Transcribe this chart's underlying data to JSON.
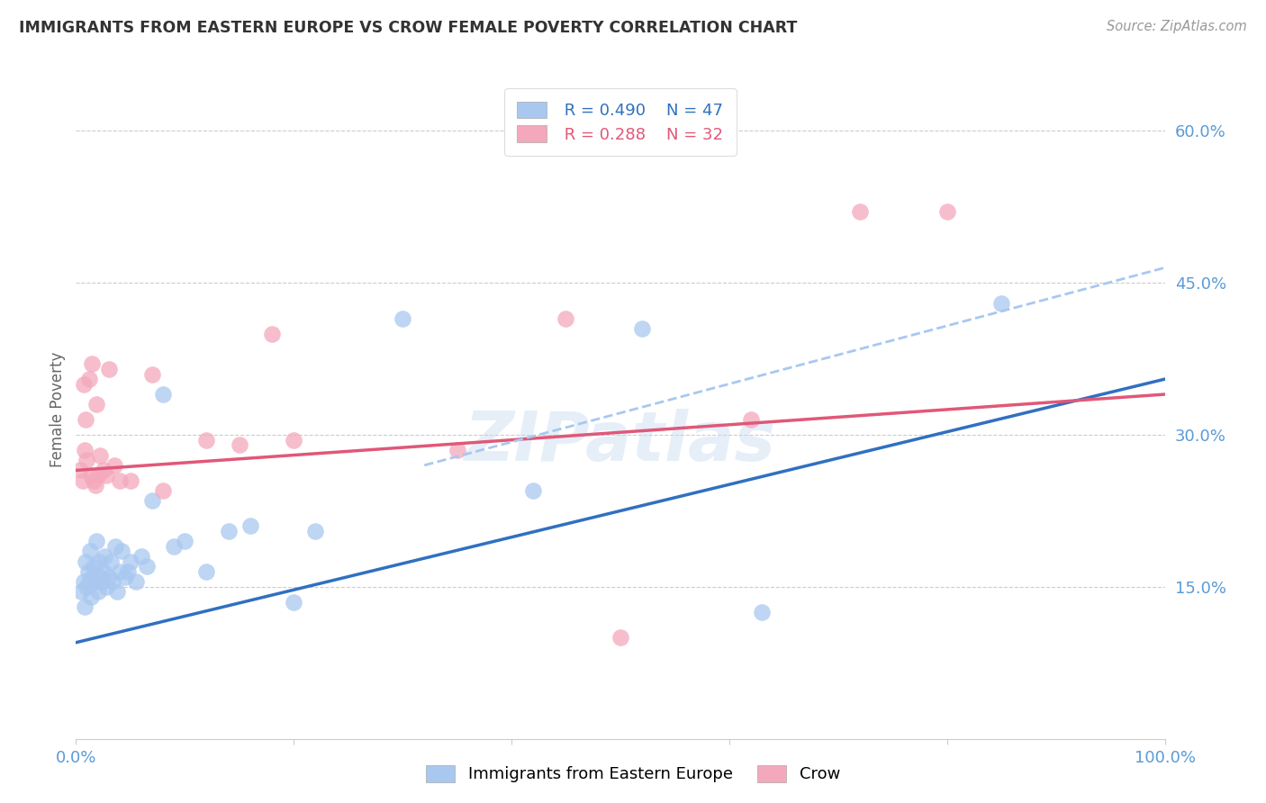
{
  "title": "IMMIGRANTS FROM EASTERN EUROPE VS CROW FEMALE POVERTY CORRELATION CHART",
  "source_text": "Source: ZipAtlas.com",
  "ylabel": "Female Poverty",
  "xlim": [
    0,
    1.0
  ],
  "ylim": [
    0.0,
    0.65
  ],
  "ytick_positions": [
    0.15,
    0.3,
    0.45,
    0.6
  ],
  "ytick_labels": [
    "15.0%",
    "30.0%",
    "45.0%",
    "60.0%"
  ],
  "blue_color": "#A8C8F0",
  "pink_color": "#F4A8BB",
  "blue_line_color": "#3070C0",
  "pink_line_color": "#E05878",
  "dashed_line_color": "#A8C8F0",
  "tick_color": "#5B9BD5",
  "grid_color": "#CCCCCC",
  "legend_text_blue_r": "R = 0.490",
  "legend_text_blue_n": "N = 47",
  "legend_text_pink_r": "R = 0.288",
  "legend_text_pink_n": "N = 32",
  "watermark": "ZIPatlas",
  "blue_line_y_start": 0.095,
  "blue_line_y_end": 0.355,
  "pink_line_y_start": 0.265,
  "pink_line_y_end": 0.34,
  "dashed_line_x_start": 0.32,
  "dashed_line_x_end": 1.0,
  "dashed_line_y_start": 0.27,
  "dashed_line_y_end": 0.465,
  "blue_scatter_x": [
    0.005,
    0.007,
    0.008,
    0.009,
    0.01,
    0.011,
    0.012,
    0.013,
    0.014,
    0.015,
    0.016,
    0.018,
    0.019,
    0.02,
    0.021,
    0.022,
    0.024,
    0.025,
    0.026,
    0.028,
    0.03,
    0.032,
    0.034,
    0.036,
    0.038,
    0.04,
    0.042,
    0.045,
    0.048,
    0.05,
    0.055,
    0.06,
    0.065,
    0.07,
    0.08,
    0.09,
    0.1,
    0.12,
    0.14,
    0.16,
    0.2,
    0.22,
    0.3,
    0.42,
    0.52,
    0.63,
    0.85
  ],
  "blue_scatter_y": [
    0.145,
    0.155,
    0.13,
    0.175,
    0.15,
    0.165,
    0.155,
    0.185,
    0.14,
    0.16,
    0.17,
    0.155,
    0.195,
    0.145,
    0.175,
    0.16,
    0.155,
    0.165,
    0.18,
    0.15,
    0.16,
    0.175,
    0.155,
    0.19,
    0.145,
    0.165,
    0.185,
    0.16,
    0.165,
    0.175,
    0.155,
    0.18,
    0.17,
    0.235,
    0.34,
    0.19,
    0.195,
    0.165,
    0.205,
    0.21,
    0.135,
    0.205,
    0.415,
    0.245,
    0.405,
    0.125,
    0.43
  ],
  "pink_scatter_x": [
    0.004,
    0.006,
    0.007,
    0.008,
    0.009,
    0.01,
    0.012,
    0.014,
    0.015,
    0.016,
    0.018,
    0.019,
    0.02,
    0.022,
    0.025,
    0.028,
    0.03,
    0.035,
    0.04,
    0.05,
    0.07,
    0.08,
    0.12,
    0.15,
    0.18,
    0.2,
    0.35,
    0.45,
    0.5,
    0.62,
    0.72,
    0.8
  ],
  "pink_scatter_y": [
    0.265,
    0.255,
    0.35,
    0.285,
    0.315,
    0.275,
    0.355,
    0.26,
    0.37,
    0.255,
    0.25,
    0.33,
    0.26,
    0.28,
    0.265,
    0.26,
    0.365,
    0.27,
    0.255,
    0.255,
    0.36,
    0.245,
    0.295,
    0.29,
    0.4,
    0.295,
    0.285,
    0.415,
    0.1,
    0.315,
    0.52,
    0.52
  ]
}
